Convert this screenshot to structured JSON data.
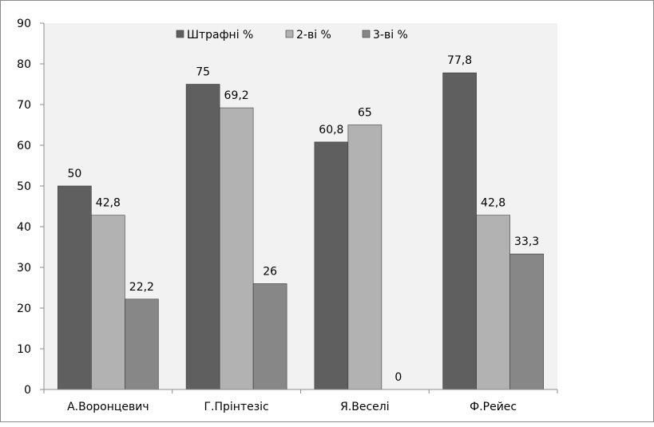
{
  "chart_data": {
    "type": "bar",
    "categories": [
      "А.Воронцевич",
      "Г.Прінтезіс",
      "Я.Веселі",
      "Ф.Рейес"
    ],
    "series": [
      {
        "name": "Штрафні %",
        "values": [
          50,
          75,
          60.8,
          77.8
        ],
        "labels": [
          "50",
          "75",
          "60,8",
          "77,8"
        ],
        "color": "#5f5f5f"
      },
      {
        "name": "2-ві %",
        "values": [
          42.8,
          69.2,
          65,
          42.8
        ],
        "labels": [
          "42,8",
          "69,2",
          "65",
          "42,8"
        ],
        "color": "#b2b2b2"
      },
      {
        "name": "3-ві %",
        "values": [
          22.2,
          26,
          0,
          33.3
        ],
        "labels": [
          "22,2",
          "26",
          "0",
          "33,3"
        ],
        "color": "#878787"
      }
    ],
    "ylim": [
      0,
      90
    ],
    "yticks": [
      0,
      10,
      20,
      30,
      40,
      50,
      60,
      70,
      80,
      90
    ],
    "ytick_labels": [
      "0",
      "10",
      "20",
      "30",
      "40",
      "50",
      "60",
      "70",
      "80",
      "90"
    ],
    "legend_position": "top",
    "grid": false,
    "plot_background": "#f2f2f2",
    "title": "",
    "xlabel": "",
    "ylabel": ""
  }
}
